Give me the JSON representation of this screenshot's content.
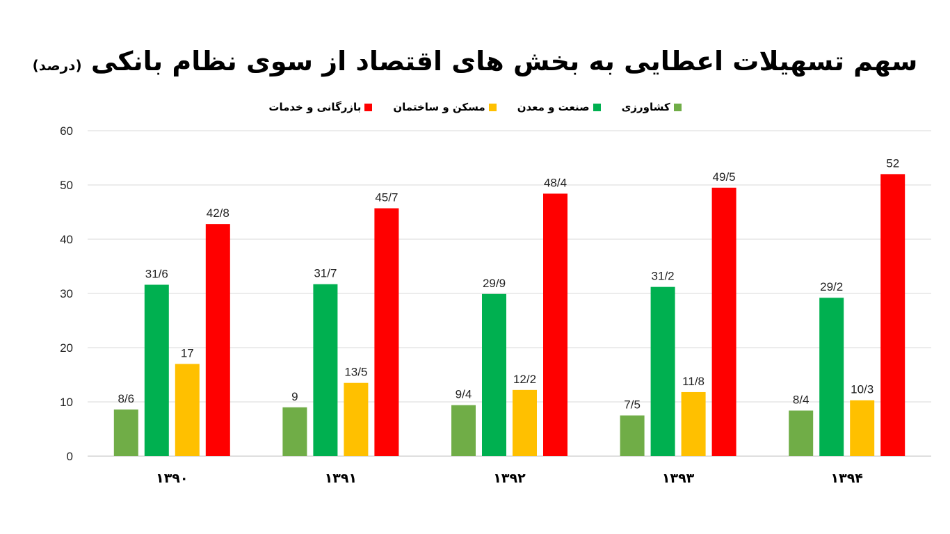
{
  "chart_data": {
    "type": "bar",
    "title": "سهم تسهیلات اعطایی به بخش های اقتصاد از سوی نظام بانکی",
    "title_unit": "(درصد)",
    "categories": [
      "۱۳۹۰",
      "۱۳۹۱",
      "۱۳۹۲",
      "۱۳۹۳",
      "۱۳۹۴"
    ],
    "series": [
      {
        "name": "کشاورزی",
        "color": "#70ad47",
        "values": [
          8.6,
          9,
          9.4,
          7.5,
          8.4
        ],
        "labels": [
          "8/6",
          "9",
          "9/4",
          "7/5",
          "8/4"
        ]
      },
      {
        "name": "صنعت و معدن",
        "color": "#00b050",
        "values": [
          31.6,
          31.7,
          29.9,
          31.2,
          29.2
        ],
        "labels": [
          "31/6",
          "31/7",
          "29/9",
          "31/2",
          "29/2"
        ]
      },
      {
        "name": "مسکن و ساختمان",
        "color": "#ffc000",
        "values": [
          17,
          13.5,
          12.2,
          11.8,
          10.3
        ],
        "labels": [
          "17",
          "13/5",
          "12/2",
          "11/8",
          "10/3"
        ]
      },
      {
        "name": "بازرگانی و خدمات",
        "color": "#ff0000",
        "values": [
          42.8,
          45.7,
          48.4,
          49.5,
          52
        ],
        "labels": [
          "42/8",
          "45/7",
          "48/4",
          "49/5",
          "52"
        ]
      }
    ],
    "ylim": [
      0,
      60
    ],
    "yticks": [
      "0",
      "10",
      "20",
      "30",
      "40",
      "50",
      "60"
    ],
    "grid": true,
    "legend_position": "top"
  }
}
